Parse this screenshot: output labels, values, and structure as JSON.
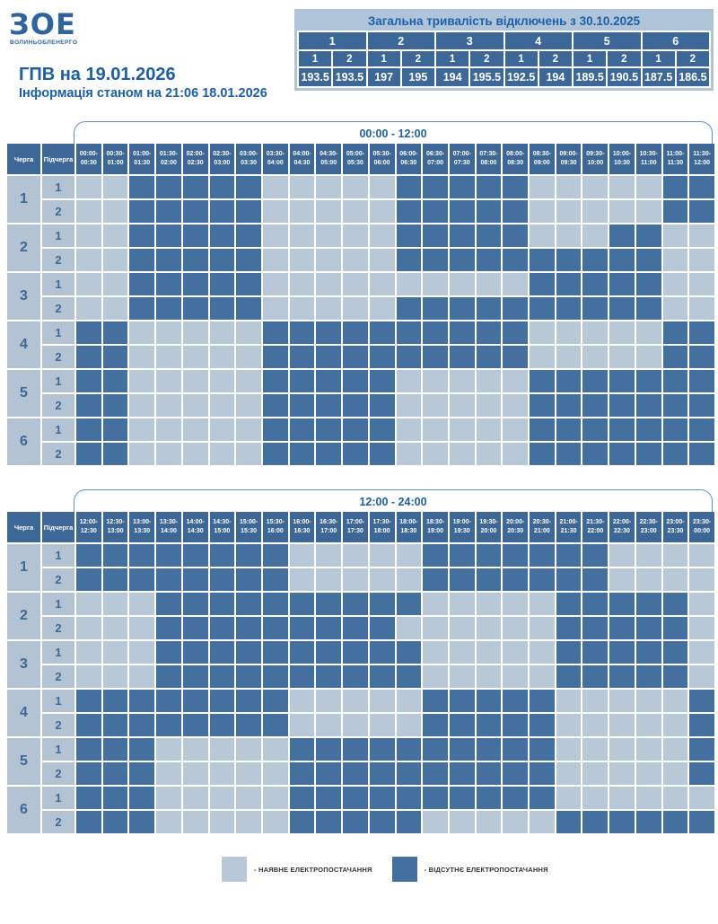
{
  "colors": {
    "accent_text": "#1c5fa8",
    "header_cell": "#3d6797",
    "outage_cell": "#44709f",
    "available_cell": "#b9c8d7",
    "label_cell": "#b4c3d4",
    "summary_frame": "#b0c4d9",
    "bracket_border": "#5e8fc6",
    "legend_text": "#333333",
    "logo_blue": "#2e649f"
  },
  "logo": {
    "mark": "ЗОЕ",
    "company": "ВОЛИНЬОБЛЕНЕРГО"
  },
  "header": {
    "title": "ГПВ на 19.01.2026",
    "subtitle": "Інформація станом на 21:06 18.01.2026"
  },
  "summary_table": {
    "title": "Загальна тривалість відключень з 30.10.2025",
    "queues": [
      "1",
      "2",
      "3",
      "4",
      "5",
      "6"
    ],
    "subqueues": [
      "1",
      "2",
      "1",
      "2",
      "1",
      "2",
      "1",
      "2",
      "1",
      "2",
      "1",
      "2"
    ],
    "hours": [
      "193.5",
      "193.5",
      "197",
      "195",
      "194",
      "195.5",
      "192.5",
      "194",
      "189.5",
      "190.5",
      "187.5",
      "186.5"
    ]
  },
  "table_labels": {
    "queue": "Черга",
    "subqueue": "Підчерга"
  },
  "legend": {
    "available_label": "- НАЯВНЕ ЕЛЕКТРОПОСТАЧАННЯ",
    "absent_label": "- ВІДСУТНЄ ЕЛЕКТРОПОСТАЧАННЯ"
  },
  "chart_data": [
    {
      "type": "heatmap",
      "title": "00:00 - 12:00",
      "cell_encoding": {
        "0": "наявне електропостачання",
        "1": "відсутнє електропостачання"
      },
      "x_labels": [
        "00:00-00:30",
        "00:30-01:00",
        "01:00-01:30",
        "01:30-02:00",
        "02:00-02:30",
        "02:30-03:00",
        "03:00-03:30",
        "03:30-04:00",
        "04:00-04:30",
        "04:30-05:00",
        "05:00-05:30",
        "05:30-06:00",
        "06:00-06:30",
        "06:30-07:00",
        "07:00-07:30",
        "07:30-08:00",
        "08:00-08:30",
        "08:30-09:00",
        "09:00-09:30",
        "09:30-10:00",
        "10:00-10:30",
        "10:30-11:00",
        "11:00-11:30",
        "11:30-12:00"
      ],
      "rows": [
        {
          "queue": "1",
          "subqueue": "1",
          "slots": "001111100000111110000011"
        },
        {
          "queue": "1",
          "subqueue": "2",
          "slots": "001111100000111110000011"
        },
        {
          "queue": "2",
          "subqueue": "1",
          "slots": "001111100000111110001100"
        },
        {
          "queue": "2",
          "subqueue": "2",
          "slots": "001111100000111111111100"
        },
        {
          "queue": "3",
          "subqueue": "1",
          "slots": "001111100000000001111100"
        },
        {
          "queue": "3",
          "subqueue": "2",
          "slots": "001111100000111111111100"
        },
        {
          "queue": "4",
          "subqueue": "1",
          "slots": "110000011111111110000011"
        },
        {
          "queue": "4",
          "subqueue": "2",
          "slots": "110000011111111110000011"
        },
        {
          "queue": "5",
          "subqueue": "1",
          "slots": "110000011111000001111111"
        },
        {
          "queue": "5",
          "subqueue": "2",
          "slots": "110000011111000001111111"
        },
        {
          "queue": "6",
          "subqueue": "1",
          "slots": "110000011111000001111111"
        },
        {
          "queue": "6",
          "subqueue": "2",
          "slots": "110000011111000001111111"
        }
      ]
    },
    {
      "type": "heatmap",
      "title": "12:00 - 24:00",
      "cell_encoding": {
        "0": "наявне електропостачання",
        "1": "відсутнє електропостачання"
      },
      "x_labels": [
        "12:00-12:30",
        "12:30-13:00",
        "13:00-13:30",
        "13:30-14:00",
        "14:00-14:30",
        "14:30-15:00",
        "15:00-15:30",
        "15:30-16:00",
        "16:00-16:30",
        "16:30-17:00",
        "17:00-17:30",
        "17:30-18:00",
        "18:00-18:30",
        "18:30-19:00",
        "19:00-19:30",
        "19:30-20:00",
        "20:00-20:30",
        "20:30-21:00",
        "21:00-21:30",
        "21:30-22:00",
        "22:00-22:30",
        "22:30-23:00",
        "23:00-23:30",
        "23:30-00:00"
      ],
      "rows": [
        {
          "queue": "1",
          "subqueue": "1",
          "slots": "111111110000011111110000"
        },
        {
          "queue": "1",
          "subqueue": "2",
          "slots": "111111110000011111110000"
        },
        {
          "queue": "2",
          "subqueue": "1",
          "slots": "000111111111100000111110"
        },
        {
          "queue": "2",
          "subqueue": "2",
          "slots": "000111111111000000111110"
        },
        {
          "queue": "3",
          "subqueue": "1",
          "slots": "000111111111100000111110"
        },
        {
          "queue": "3",
          "subqueue": "2",
          "slots": "000111111111100000111110"
        },
        {
          "queue": "4",
          "subqueue": "1",
          "slots": "111111110000011111000001"
        },
        {
          "queue": "4",
          "subqueue": "2",
          "slots": "111111110000011111000001"
        },
        {
          "queue": "5",
          "subqueue": "1",
          "slots": "111000001111111111000001"
        },
        {
          "queue": "5",
          "subqueue": "2",
          "slots": "111000001111111111000001"
        },
        {
          "queue": "6",
          "subqueue": "1",
          "slots": "111000001111111111000000"
        },
        {
          "queue": "6",
          "subqueue": "2",
          "slots": "111000001111100000111111"
        }
      ]
    }
  ]
}
